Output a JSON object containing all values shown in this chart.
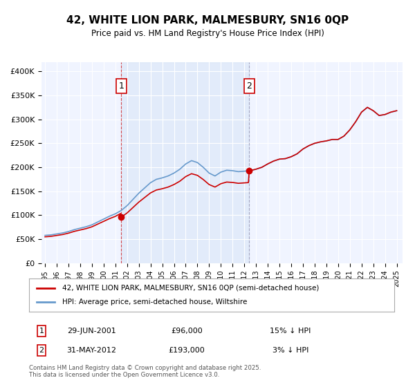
{
  "title": "42, WHITE LION PARK, MALMESBURY, SN16 0QP",
  "subtitle": "Price paid vs. HM Land Registry's House Price Index (HPI)",
  "legend_label_red": "42, WHITE LION PARK, MALMESBURY, SN16 0QP (semi-detached house)",
  "legend_label_blue": "HPI: Average price, semi-detached house, Wiltshire",
  "marker1_date": "29-JUN-2001",
  "marker1_price": 96000,
  "marker1_hpi": "15% ↓ HPI",
  "marker2_date": "31-MAY-2012",
  "marker2_price": 193000,
  "marker2_hpi": "3% ↓ HPI",
  "footnote": "Contains HM Land Registry data © Crown copyright and database right 2025.\nThis data is licensed under the Open Government Licence v3.0.",
  "background_color": "#ffffff",
  "plot_bg_color": "#f0f4ff",
  "grid_color": "#ffffff",
  "red_color": "#cc0000",
  "blue_color": "#6699cc",
  "shade_color": "#dde8f8",
  "marker1_x": 2001.5,
  "marker2_x": 2012.42,
  "ylim_max": 420000,
  "ylim_min": 0
}
